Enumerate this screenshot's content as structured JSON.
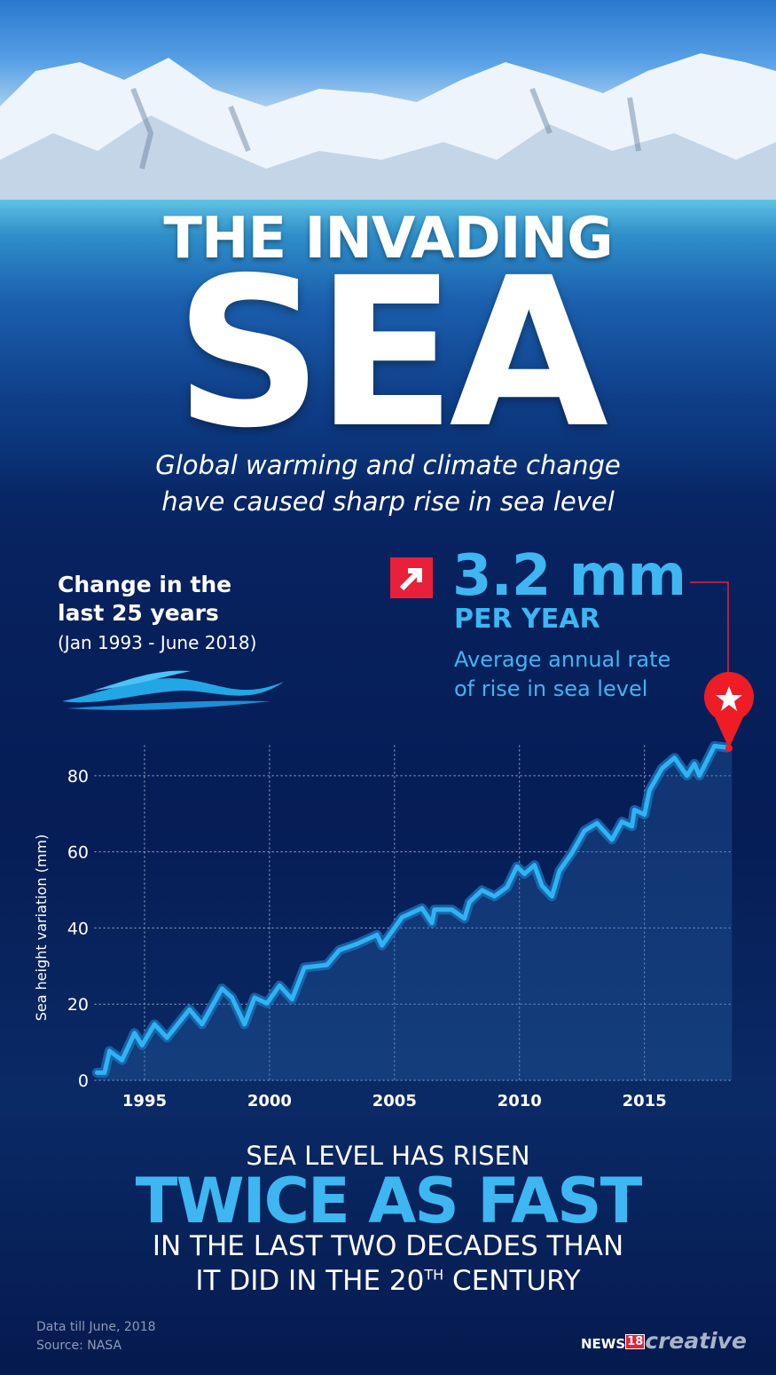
{
  "header": {
    "title_line1": "THE INVADING",
    "title_line2": "SEA",
    "subtitle_line1": "Global warming and climate change",
    "subtitle_line2": "have caused sharp rise in sea level"
  },
  "left_panel": {
    "heading_line1": "Change in the",
    "heading_line2": "last 25 years",
    "period": "(Jan 1993 - June 2018)",
    "icon": "wave-icon"
  },
  "stat": {
    "icon": "arrow-up-right-icon",
    "value": "3.2 mm",
    "unit": "PER YEAR",
    "desc_line1": "Average annual rate",
    "desc_line2": "of rise in sea level",
    "marker_icon": "star-pin-icon"
  },
  "colors": {
    "accent": "#3db6f2",
    "red": "#e8203a",
    "background": "#061d56"
  },
  "chart_data": {
    "type": "area",
    "ylabel": "Sea height variation (mm)",
    "xlabel": "",
    "xlim": [
      1993,
      2018.5
    ],
    "ylim": [
      0,
      88
    ],
    "yticks": [
      0,
      20,
      40,
      60,
      80
    ],
    "xticks": [
      1995,
      2000,
      2005,
      2010,
      2015
    ],
    "grid": true,
    "x": [
      1993.1,
      1993.4,
      1993.6,
      1994.1,
      1994.6,
      1994.9,
      1995.4,
      1995.9,
      1996.8,
      1997.3,
      1998.1,
      1998.5,
      1999.0,
      1999.4,
      1999.9,
      2000.4,
      2000.9,
      2001.4,
      2002.3,
      2002.8,
      2003.5,
      2004.3,
      2004.5,
      2005.3,
      2006.1,
      2006.5,
      2006.6,
      2007.3,
      2007.8,
      2008.0,
      2008.5,
      2009.0,
      2009.5,
      2009.9,
      2010.2,
      2010.6,
      2010.9,
      2011.3,
      2011.6,
      2012.1,
      2012.6,
      2013.1,
      2013.7,
      2014.1,
      2014.5,
      2014.6,
      2015.0,
      2015.2,
      2015.7,
      2016.2,
      2016.7,
      2017.0,
      2017.2,
      2017.8,
      2018.3
    ],
    "y": [
      2,
      2,
      7.7,
      5.3,
      12.4,
      9.2,
      14.7,
      11.2,
      18.6,
      14.7,
      24.1,
      21.7,
      14.7,
      21.7,
      20.2,
      24.9,
      21.3,
      29.6,
      30.3,
      34.2,
      35.8,
      38.2,
      35.4,
      42.8,
      45.2,
      41.3,
      44.8,
      44.8,
      42.5,
      46.8,
      49.9,
      48.3,
      50.7,
      56.1,
      54.2,
      56.5,
      51.1,
      48.3,
      55.0,
      59.7,
      65.5,
      67.5,
      63.2,
      67.9,
      66.7,
      71.0,
      69.8,
      76.1,
      81.9,
      84.7,
      80.0,
      83.1,
      80.0,
      87.8,
      87.4
    ]
  },
  "bottom": {
    "line1": "SEA LEVEL HAS RISEN",
    "line2": "TWICE AS FAST",
    "line3": "IN THE LAST TWO DECADES THAN",
    "line4_pre": "IT DID IN THE 20",
    "line4_sup": "TH",
    "line4_post": " CENTURY"
  },
  "footer": {
    "note": "Data till June, 2018",
    "source": "Source: NASA",
    "logo_news": "NEWS",
    "logo_num": "18",
    "logo_creative": "creative"
  }
}
